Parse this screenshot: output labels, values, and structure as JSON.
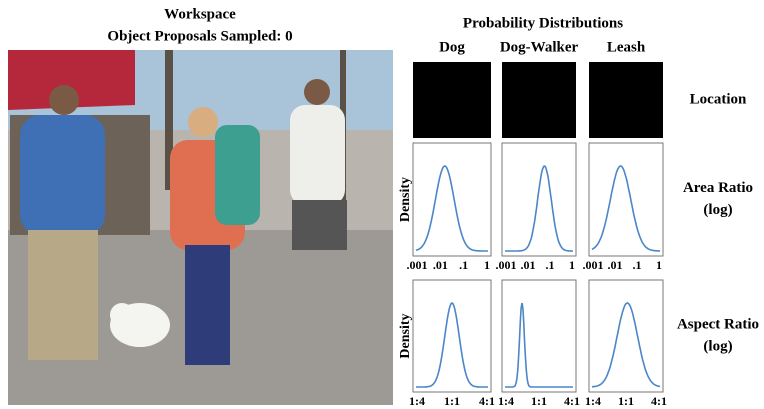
{
  "workspace": {
    "title": "Workspace",
    "subtitle": "Object Proposals Sampled: 0"
  },
  "distributions": {
    "title": "Probability Distributions",
    "columns": [
      "Dog",
      "Dog-Walker",
      "Leash"
    ],
    "rows": [
      {
        "label": [
          "Location"
        ]
      },
      {
        "label": [
          "Area Ratio",
          "(log)"
        ],
        "y_label": "Density",
        "ticks": [
          ".001",
          ".01",
          ".1",
          "1"
        ]
      },
      {
        "label": [
          "Aspect Ratio",
          "(log)"
        ],
        "y_label": "Density",
        "ticks": [
          "1:4",
          "1:1",
          "4:1"
        ]
      }
    ]
  }
}
